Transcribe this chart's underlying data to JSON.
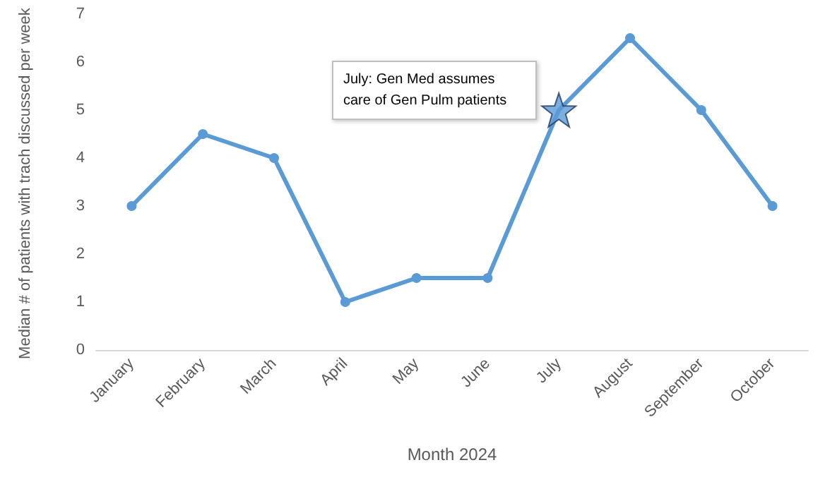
{
  "chart_data": {
    "type": "line",
    "xlabel": "Month 2024",
    "ylabel": "Median # of patients with trach discussed per week",
    "categories": [
      "January",
      "February",
      "March",
      "April",
      "May",
      "June",
      "July",
      "August",
      "September",
      "October"
    ],
    "series": [
      {
        "color": "#5b9bd5",
        "values": [
          3,
          4.5,
          4,
          1,
          1.5,
          1.5,
          5,
          6.5,
          5,
          3
        ]
      },
      {
        "type": "scatter",
        "x": [
          "July"
        ],
        "values": [
          5
        ],
        "color": "#5b9bd5",
        "marker": "star"
      }
    ],
    "annotations": [
      "July: Gen Med assumes care of Gen Pulm patients"
    ],
    "ylim": [
      0,
      7
    ],
    "yticks": [
      0,
      1,
      2,
      3,
      4,
      5,
      6,
      7
    ],
    "marker": "circle",
    "line_style": "solid",
    "grid": false
  }
}
